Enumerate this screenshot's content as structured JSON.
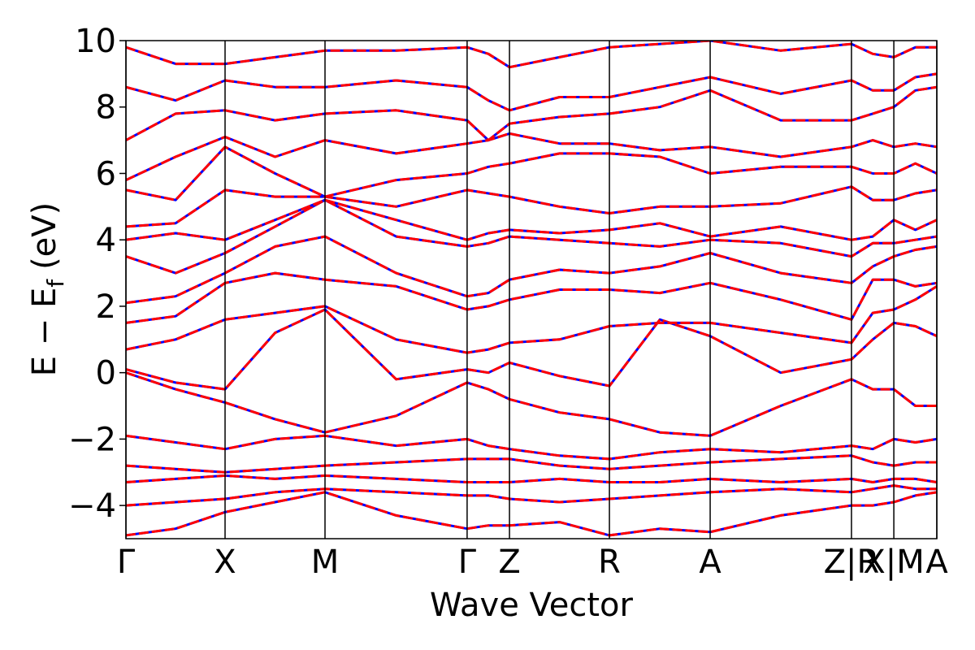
{
  "chart_data": {
    "type": "line",
    "xlabel": "Wave Vector",
    "ylabel": "E − E",
    "ylabel_sub": "f",
    "ylabel_unit": "(eV)",
    "xlim": [
      0,
      4.0
    ],
    "xticks": [
      {
        "value": 0,
        "label": "Γ"
      },
      {
        "value": 0.489,
        "label": "X"
      },
      {
        "value": 0.982,
        "label": "M"
      },
      {
        "value": 1.683,
        "label": "Γ"
      },
      {
        "value": 1.892,
        "label": "Z"
      },
      {
        "value": 2.385,
        "label": "R"
      },
      {
        "value": 2.882,
        "label": "A"
      },
      {
        "value": 3.579,
        "label": "Z|R"
      },
      {
        "value": 3.788,
        "label": "X|M"
      },
      {
        "value": 4.0,
        "label": "A"
      }
    ],
    "tick_lines": true,
    "ylim": [
      -5,
      10
    ],
    "yticks": [
      {
        "value": -4,
        "label": "−4"
      },
      {
        "value": -2,
        "label": "−2"
      },
      0,
      2,
      4,
      6,
      8,
      10
    ],
    "line_color": "#0000ff",
    "dash_color": "#ff0000",
    "x": [
      0,
      0.245,
      0.489,
      0.736,
      0.982,
      1.333,
      1.683,
      1.788,
      1.892,
      2.139,
      2.385,
      2.634,
      2.882,
      3.23,
      3.579,
      3.684,
      3.788,
      3.894,
      4.0
    ],
    "series": [
      {
        "values": [
          -4.9,
          -4.7,
          -4.2,
          -3.9,
          -3.6,
          -4.3,
          -4.7,
          -4.6,
          -4.6,
          -4.5,
          -4.9,
          -4.7,
          -4.8,
          -4.3,
          -4.0,
          -4.0,
          -3.9,
          -3.7,
          -3.6
        ]
      },
      {
        "values": [
          -4.0,
          -3.9,
          -3.8,
          -3.6,
          -3.5,
          -3.6,
          -3.7,
          -3.7,
          -3.8,
          -3.9,
          -3.8,
          -3.7,
          -3.6,
          -3.5,
          -3.6,
          -3.5,
          -3.4,
          -3.5,
          -3.5
        ]
      },
      {
        "values": [
          -3.3,
          -3.2,
          -3.1,
          -3.2,
          -3.1,
          -3.2,
          -3.3,
          -3.3,
          -3.3,
          -3.2,
          -3.3,
          -3.3,
          -3.2,
          -3.3,
          -3.2,
          -3.3,
          -3.2,
          -3.2,
          -3.3
        ]
      },
      {
        "values": [
          -2.8,
          -2.9,
          -3.0,
          -2.9,
          -2.8,
          -2.7,
          -2.6,
          -2.6,
          -2.6,
          -2.8,
          -2.9,
          -2.8,
          -2.7,
          -2.6,
          -2.5,
          -2.7,
          -2.8,
          -2.7,
          -2.7
        ]
      },
      {
        "values": [
          -1.9,
          -2.1,
          -2.3,
          -2.0,
          -1.9,
          -2.2,
          -2.0,
          -2.2,
          -2.3,
          -2.5,
          -2.6,
          -2.4,
          -2.3,
          -2.4,
          -2.2,
          -2.3,
          -2.0,
          -2.1,
          -2.0
        ]
      },
      {
        "values": [
          0.0,
          -0.5,
          -0.9,
          -1.4,
          -1.8,
          -1.3,
          -0.3,
          -0.5,
          -0.8,
          -1.2,
          -1.4,
          -1.8,
          -1.9,
          -1.0,
          -0.2,
          -0.5,
          -0.5,
          -1.0,
          -1.0
        ]
      },
      {
        "values": [
          0.1,
          -0.3,
          -0.5,
          1.2,
          1.9,
          -0.2,
          0.1,
          0.0,
          0.3,
          -0.1,
          -0.4,
          1.6,
          1.1,
          0.0,
          0.4,
          1.0,
          1.5,
          1.4,
          1.1
        ]
      },
      {
        "values": [
          0.7,
          1.0,
          1.6,
          1.8,
          2.0,
          1.0,
          0.6,
          0.7,
          0.9,
          1.0,
          1.4,
          1.5,
          1.5,
          1.2,
          0.9,
          1.8,
          1.9,
          2.2,
          2.6
        ]
      },
      {
        "values": [
          1.5,
          1.7,
          2.7,
          3.0,
          2.8,
          2.6,
          1.9,
          2.0,
          2.2,
          2.5,
          2.5,
          2.4,
          2.7,
          2.2,
          1.6,
          2.8,
          2.8,
          2.6,
          2.7
        ]
      },
      {
        "values": [
          2.1,
          2.3,
          3.0,
          3.8,
          4.1,
          3.0,
          2.3,
          2.4,
          2.8,
          3.1,
          3.0,
          3.2,
          3.6,
          3.0,
          2.7,
          3.2,
          3.5,
          3.7,
          3.8
        ]
      },
      {
        "values": [
          3.5,
          3.0,
          3.6,
          4.4,
          5.2,
          4.1,
          3.8,
          3.9,
          4.1,
          4.0,
          3.9,
          3.8,
          4.0,
          3.9,
          3.5,
          3.9,
          3.9,
          4.0,
          4.1
        ]
      },
      {
        "values": [
          4.0,
          4.2,
          4.0,
          4.6,
          5.2,
          4.6,
          4.0,
          4.2,
          4.3,
          4.2,
          4.3,
          4.5,
          4.1,
          4.4,
          4.0,
          4.1,
          4.6,
          4.3,
          4.6
        ]
      },
      {
        "values": [
          4.4,
          4.5,
          5.5,
          5.3,
          5.3,
          5.0,
          5.5,
          5.4,
          5.3,
          5.0,
          4.8,
          5.0,
          5.0,
          5.1,
          5.6,
          5.2,
          5.2,
          5.4,
          5.5
        ]
      },
      {
        "values": [
          5.5,
          5.2,
          6.8,
          6.0,
          5.3,
          5.8,
          6.0,
          6.2,
          6.3,
          6.6,
          6.6,
          6.5,
          6.0,
          6.2,
          6.2,
          6.0,
          6.0,
          6.3,
          6.0
        ]
      },
      {
        "values": [
          5.8,
          6.5,
          7.1,
          6.5,
          7.0,
          6.6,
          6.9,
          7.0,
          7.2,
          6.9,
          6.9,
          6.7,
          6.8,
          6.5,
          6.8,
          7.0,
          6.8,
          6.9,
          6.8
        ]
      },
      {
        "values": [
          7.0,
          7.8,
          7.9,
          7.6,
          7.8,
          7.9,
          7.6,
          7.0,
          7.5,
          7.7,
          7.8,
          8.0,
          8.5,
          7.6,
          7.6,
          7.8,
          8.0,
          8.5,
          8.6
        ]
      },
      {
        "values": [
          8.6,
          8.2,
          8.8,
          8.6,
          8.6,
          8.8,
          8.6,
          8.2,
          7.9,
          8.3,
          8.3,
          8.6,
          8.9,
          8.4,
          8.8,
          8.5,
          8.5,
          8.9,
          9.0
        ]
      },
      {
        "values": [
          9.8,
          9.3,
          9.3,
          9.5,
          9.7,
          9.7,
          9.8,
          9.6,
          9.2,
          9.5,
          9.8,
          9.9,
          10.0,
          9.7,
          9.9,
          9.6,
          9.5,
          9.8,
          9.8
        ]
      }
    ]
  }
}
